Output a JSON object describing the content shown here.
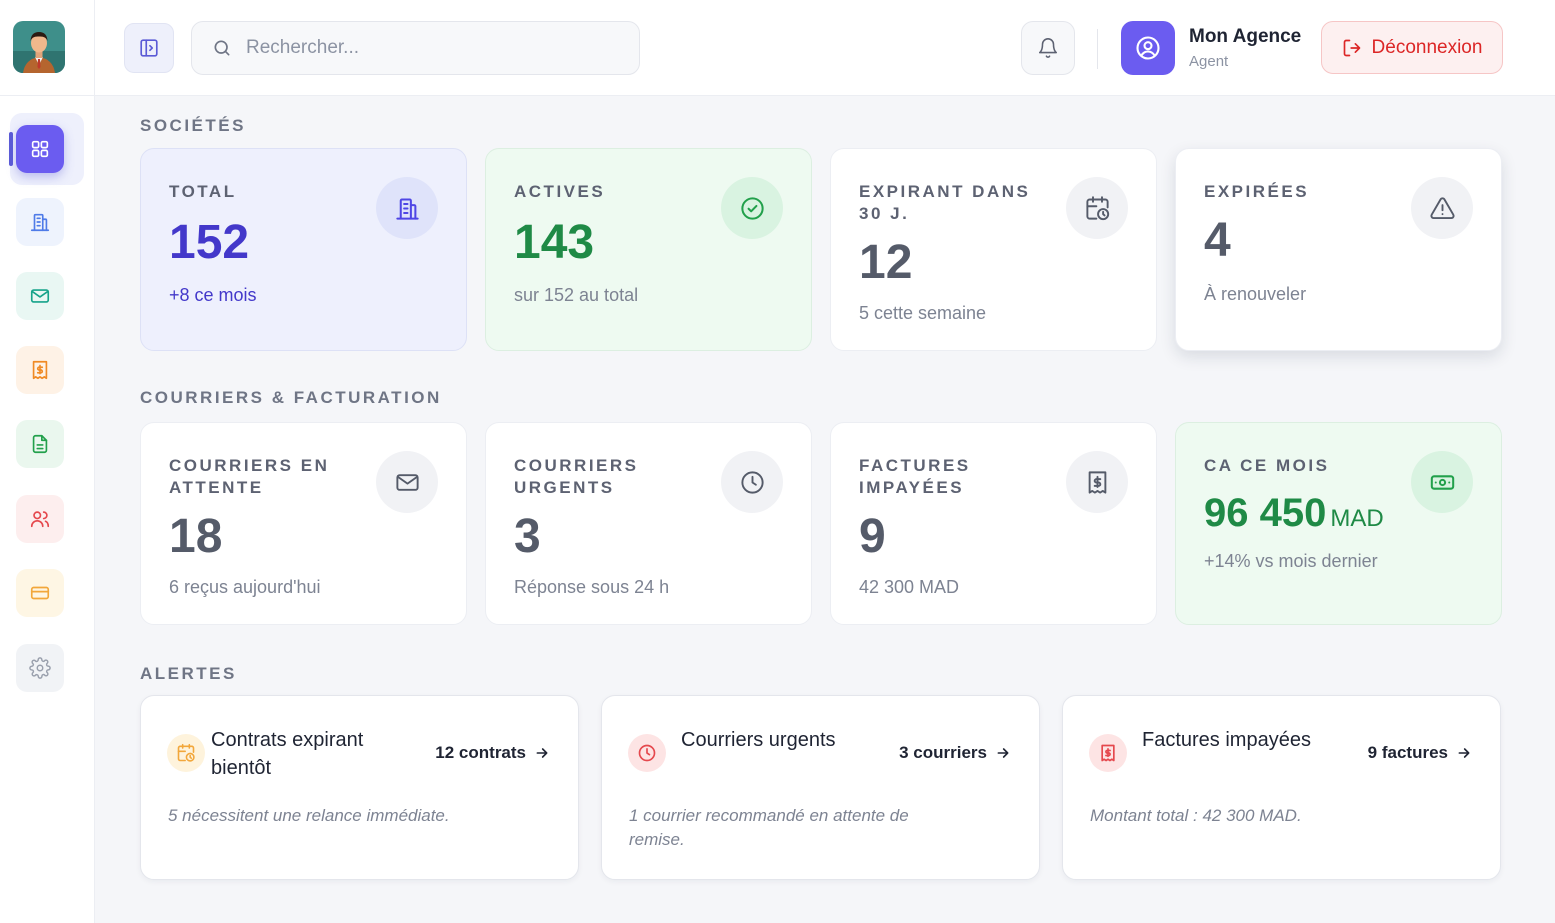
{
  "colors": {
    "primary": "#5b5bd6",
    "green": "#22a04b",
    "danger": "#dc2626",
    "orange": "#f08a24",
    "warning": "#f2a73b"
  },
  "sidebar": {
    "items": [
      {
        "icon": "grid-icon",
        "active": true
      },
      {
        "icon": "building-icon"
      },
      {
        "icon": "mail-icon"
      },
      {
        "icon": "invoice-icon"
      },
      {
        "icon": "document-icon"
      },
      {
        "icon": "users-icon"
      },
      {
        "icon": "credit-card-icon"
      },
      {
        "icon": "gear-icon"
      }
    ]
  },
  "header": {
    "search_placeholder": "Rechercher...",
    "user_name": "Mon Agence",
    "user_role": "Agent",
    "logout_label": "Déconnexion"
  },
  "societes": {
    "title": "SOCIÉTÉS",
    "cards": [
      {
        "label": "TOTAL",
        "value": "152",
        "sub": "+8 ce mois",
        "icon": "building-icon"
      },
      {
        "label": "ACTIVES",
        "value": "143",
        "sub": "sur 152 au total",
        "icon": "check-circle-icon"
      },
      {
        "label": "EXPIRANT DANS 30 J.",
        "value": "12",
        "sub": "5 cette semaine",
        "icon": "calendar-clock-icon"
      },
      {
        "label": "EXPIRÉES",
        "value": "4",
        "sub": "À renouveler",
        "icon": "warning-icon"
      }
    ]
  },
  "courriers": {
    "title": "COURRIERS & FACTURATION",
    "cards": [
      {
        "label": "COURRIERS EN ATTENTE",
        "value": "18",
        "sub": "6 reçus aujourd'hui",
        "icon": "mail-icon"
      },
      {
        "label": "COURRIERS URGENTS",
        "value": "3",
        "sub": "Réponse sous 24 h",
        "icon": "clock-icon"
      },
      {
        "label": "FACTURES IMPAYÉES",
        "value": "9",
        "sub": "42 300 MAD",
        "icon": "invoice-icon"
      },
      {
        "label": "CA CE MOIS",
        "value": "96 450",
        "unit": "MAD",
        "sub": "+14% vs mois dernier",
        "icon": "banknote-icon"
      }
    ]
  },
  "alertes": {
    "title": "ALERTES",
    "items": [
      {
        "title": "Contrats expirant bientôt",
        "link": "12 contrats",
        "desc": "5 nécessitent une relance immédiate.",
        "icon": "calendar-clock-icon"
      },
      {
        "title": "Courriers urgents",
        "link": "3 courriers",
        "desc": "1 courrier recommandé en attente de remise.",
        "icon": "clock-icon"
      },
      {
        "title": "Factures impayées",
        "link": "9 factures",
        "desc": "Montant total : 42 300 MAD.",
        "icon": "invoice-icon"
      }
    ]
  }
}
